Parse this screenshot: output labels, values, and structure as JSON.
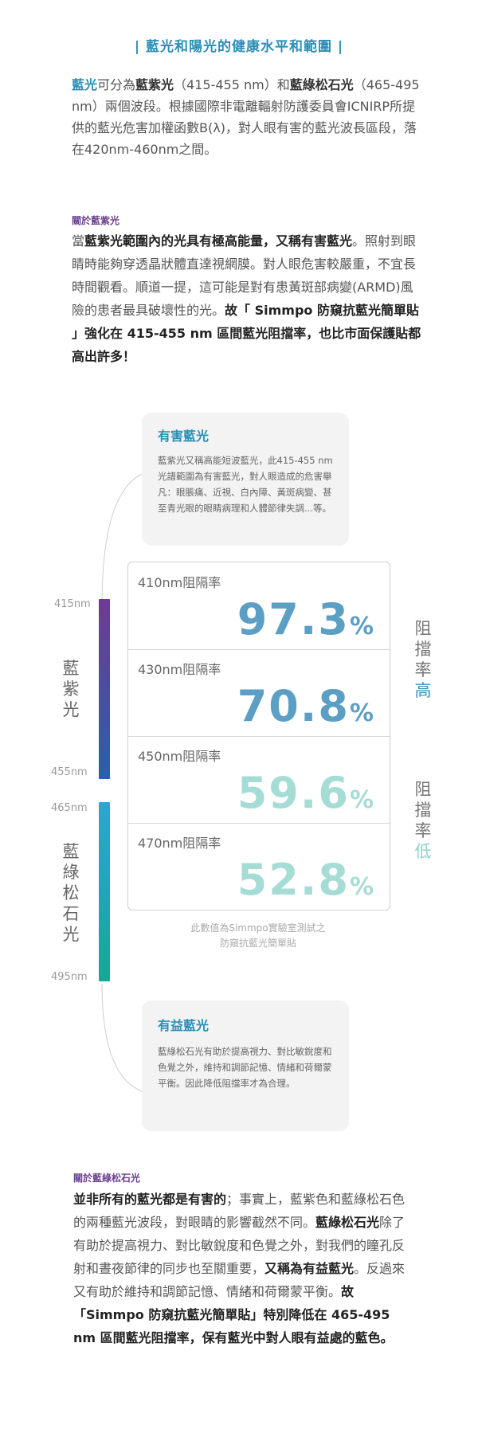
{
  "title": "| 藍光和陽光的健康水平和範圍 |",
  "intro": {
    "p1": "藍光",
    "p2": "可分為",
    "p3": "藍紫光",
    "p4": "（415-455 nm）和",
    "p5": "藍綠松石光",
    "p6": "（465-495 nm）兩個波段。根據國際非電離輻射防護委員會ICNIRP所提供的藍光危害加權函數B(λ)，對人眼有害的藍光波長區段，落在420nm-460nm之間。"
  },
  "section1": {
    "label": "關於藍紫光",
    "p1": "當",
    "p2": "藍紫光範圍內的光具有極高能量，又稱有害藍光",
    "p3": "。照射到眼睛時能夠穿透晶狀體直達視網膜。對人眼危害較嚴重，不宜長時間觀看。順道一提，這可能是對有患黃斑部病變(ARMD)風險的患者最具破壞性的光。",
    "p4": "故「 Simmpo 防窺抗藍光簡單貼 」強化在 415-455 nm 區間藍光阻擋率，也比市面保護貼都高出許多！"
  },
  "harmful_card": {
    "title": "有害藍光",
    "body": "藍紫光又稱高能短波藍光，此415-455 nm 光譜範圍為有害藍光，對人眼造成的危害舉凡：眼脹痛、近視、白內障、黃斑病變、甚至青光眼的眼睛病理和人體節律失調...等。"
  },
  "spectrum": {
    "violet_label": "藍紫光",
    "turquoise_label": "藍綠松石光",
    "nm_415": "415nm",
    "nm_455": "455nm",
    "nm_465": "465nm",
    "nm_495": "495nm"
  },
  "rates": [
    {
      "label": "410nm阻隔率",
      "value": "97.3",
      "unit": "%",
      "color": "#5b9fc4"
    },
    {
      "label": "430nm阻隔率",
      "value": "70.8",
      "unit": "%",
      "color": "#5b9fc4"
    },
    {
      "label": "450nm阻隔率",
      "value": "59.6",
      "unit": "%",
      "color": "#a6dcd6"
    },
    {
      "label": "470nm阻隔率",
      "value": "52.8",
      "unit": "%",
      "color": "#a6dcd6"
    }
  ],
  "side": {
    "high_prefix": "阻擋率",
    "high": "高",
    "low_prefix": "阻擋率",
    "low": "低",
    "high_color": "#3a8fc0",
    "low_color": "#8fd3ca"
  },
  "note": {
    "line1": "此數值為Simmpo實驗室測試之",
    "line2": "防窺抗藍光簡單貼"
  },
  "beneficial_card": {
    "title": "有益藍光",
    "body": "藍綠松石光有助於提高視力、對比敏銳度和色覺之外，維持和調節記憶、情緒和荷爾蒙平衡。因此降低阻擋率才為合理。"
  },
  "section2": {
    "label": "關於藍綠松石光",
    "p1": "並非所有的藍光都是有害的",
    "p2": "；事實上，藍紫色和藍綠松石色的兩種藍光波段，對眼睛的影響截然不同。",
    "p3": "藍綠松石光",
    "p4": "除了有助於提高視力、對比敏銳度和色覺之外，對我們的瞳孔反射和晝夜節律的同步也至關重要，",
    "p5": "又稱為有益藍光",
    "p6": "。反過來又有助於維持和調節記憶、情緒和荷爾蒙平衡。",
    "p7": "故「Simmpo 防窺抗藍光簡單貼」特別降低在 465-495 nm 區間藍光阻擋率，保有藍光中對人眼有益處的藍色。"
  },
  "colors": {
    "accent": "#2a8fb5",
    "section_label": "#6b3f8f",
    "violet_bar_top": "#6f3a96",
    "violet_bar_bottom": "#2a5fb0",
    "turquoise_bar_top": "#2aa6d8",
    "turquoise_bar_bottom": "#15a893"
  }
}
